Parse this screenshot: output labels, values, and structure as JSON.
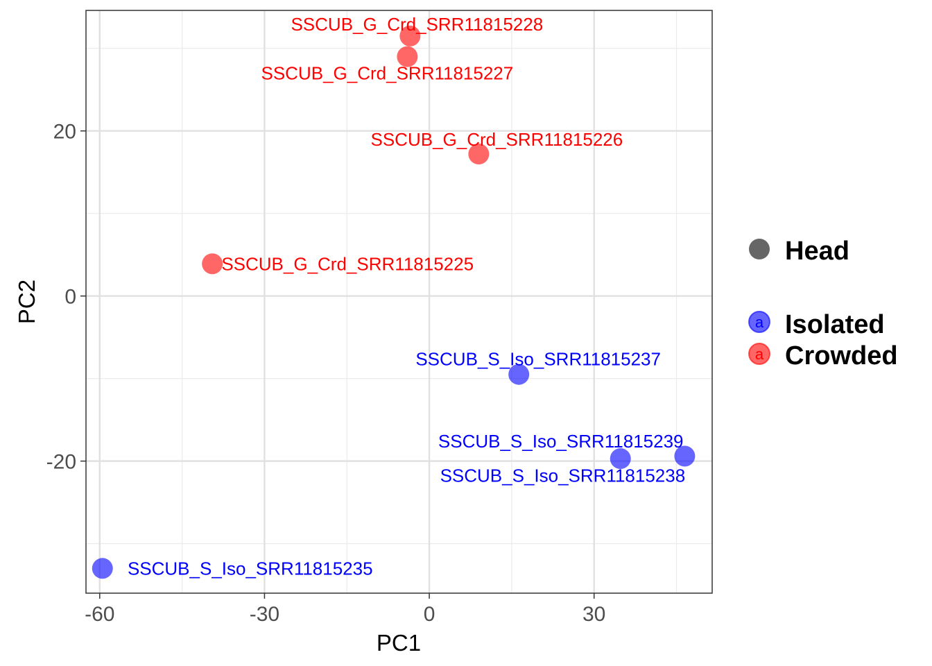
{
  "chart_data": {
    "type": "scatter",
    "xlabel": "PC1",
    "ylabel": "PC2",
    "xlim": [
      -62.5,
      51.5
    ],
    "ylim": [
      -36.0,
      34.6
    ],
    "x_ticks": [
      -60,
      -30,
      0,
      30
    ],
    "y_ticks": [
      -20,
      0,
      20
    ],
    "grid": true,
    "legend_position": "right",
    "colors": {
      "Isolated": "#0000ff",
      "Crowded": "#ff0000",
      "Head": "#666666"
    },
    "legend": {
      "shape_title": "Head",
      "groups": [
        "Isolated",
        "Crowded"
      ],
      "key_glyph": "a"
    },
    "points": [
      {
        "label": "SSCUB_G_Crd_SRR11815228",
        "x": -3.5,
        "y": 31.5,
        "group": "Crowded"
      },
      {
        "label": "SSCUB_G_Crd_SRR11815227",
        "x": -4.0,
        "y": 29.0,
        "group": "Crowded"
      },
      {
        "label": "SSCUB_G_Crd_SRR11815226",
        "x": 9.0,
        "y": 17.2,
        "group": "Crowded"
      },
      {
        "label": "SSCUB_G_Crd_SRR11815225",
        "x": -39.5,
        "y": 3.9,
        "group": "Crowded"
      },
      {
        "label": "SSCUB_S_Iso_SRR11815237",
        "x": 16.3,
        "y": -9.5,
        "group": "Isolated"
      },
      {
        "label": "SSCUB_S_Iso_SRR11815239",
        "x": 34.8,
        "y": -19.7,
        "group": "Isolated"
      },
      {
        "label": "SSCUB_S_Iso_SRR11815238",
        "x": 46.5,
        "y": -19.4,
        "group": "Isolated"
      },
      {
        "label": "SSCUB_S_Iso_SRR11815235",
        "x": -59.5,
        "y": -33.0,
        "group": "Isolated"
      }
    ]
  }
}
